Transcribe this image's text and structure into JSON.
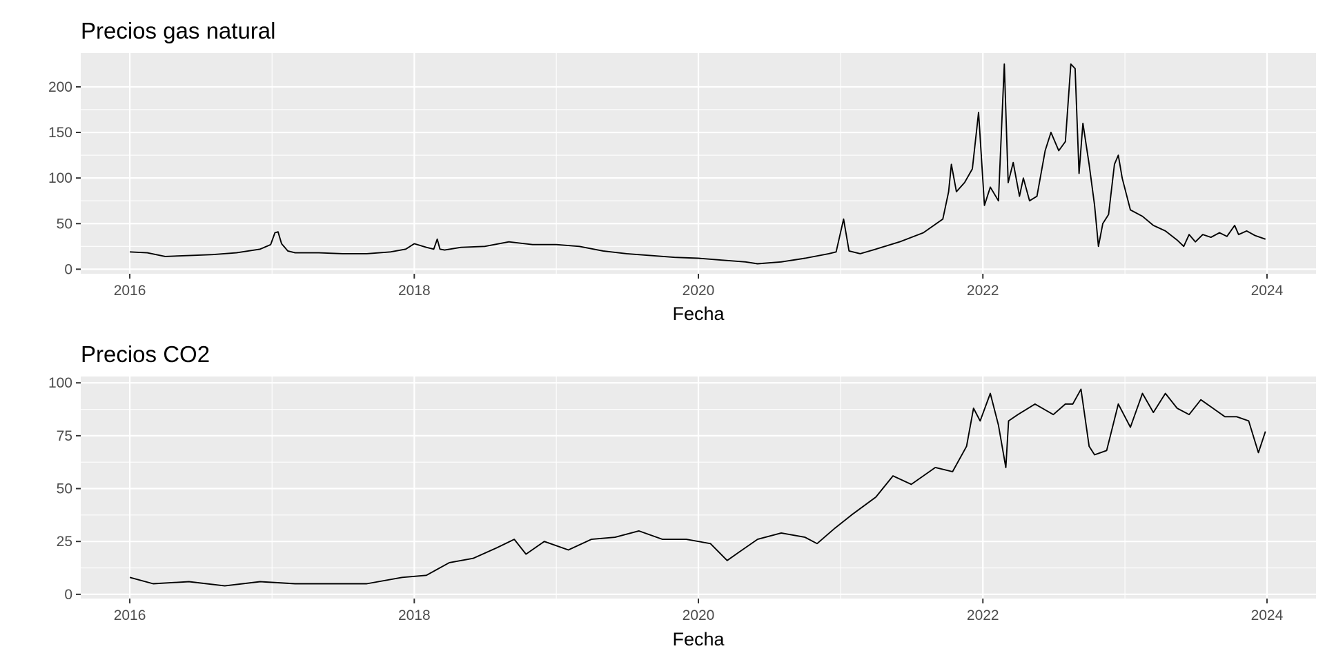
{
  "chart_data": [
    {
      "type": "line",
      "title": "Precios gas natural",
      "xlabel": "Fecha",
      "ylabel": "",
      "x_type": "date",
      "xlim": [
        "2015-08-28",
        "2024-05-06"
      ],
      "ylim": [
        -5,
        237
      ],
      "x_ticks": [
        "2016-01-01",
        "2018-01-01",
        "2020-01-01",
        "2022-01-01",
        "2024-01-01"
      ],
      "x_tick_labels": [
        "2016",
        "2018",
        "2020",
        "2022",
        "2024"
      ],
      "y_ticks": [
        0,
        50,
        100,
        150,
        200
      ],
      "y_tick_labels": [
        "0",
        "50",
        "100",
        "150",
        "200"
      ],
      "grid": true,
      "series": [
        {
          "color": "#000000",
          "x": [
            "2016-01-01",
            "2016-02-15",
            "2016-04-01",
            "2016-06-01",
            "2016-08-01",
            "2016-10-01",
            "2016-12-01",
            "2016-12-28",
            "2017-01-08",
            "2017-01-16",
            "2017-01-25",
            "2017-02-10",
            "2017-03-01",
            "2017-05-01",
            "2017-07-01",
            "2017-09-01",
            "2017-11-01",
            "2017-12-10",
            "2018-01-01",
            "2018-02-01",
            "2018-02-20",
            "2018-03-01",
            "2018-03-08",
            "2018-03-20",
            "2018-05-01",
            "2018-07-01",
            "2018-09-01",
            "2018-11-01",
            "2019-01-01",
            "2019-03-01",
            "2019-05-01",
            "2019-07-01",
            "2019-09-01",
            "2019-11-01",
            "2020-01-01",
            "2020-03-01",
            "2020-05-01",
            "2020-06-01",
            "2020-08-01",
            "2020-10-01",
            "2020-12-01",
            "2020-12-20",
            "2021-01-08",
            "2021-01-22",
            "2021-02-20",
            "2021-04-01",
            "2021-06-01",
            "2021-08-01",
            "2021-09-20",
            "2021-10-05",
            "2021-10-12",
            "2021-10-25",
            "2021-11-15",
            "2021-12-05",
            "2021-12-21",
            "2022-01-05",
            "2022-01-20",
            "2022-02-10",
            "2022-02-25",
            "2022-03-07",
            "2022-03-20",
            "2022-04-05",
            "2022-04-15",
            "2022-05-01",
            "2022-05-20",
            "2022-06-10",
            "2022-06-25",
            "2022-07-15",
            "2022-08-01",
            "2022-08-15",
            "2022-08-26",
            "2022-09-05",
            "2022-09-15",
            "2022-10-01",
            "2022-10-15",
            "2022-10-25",
            "2022-11-05",
            "2022-11-20",
            "2022-12-05",
            "2022-12-15",
            "2022-12-25",
            "2023-01-15",
            "2023-02-15",
            "2023-03-15",
            "2023-04-15",
            "2023-05-15",
            "2023-06-01",
            "2023-06-15",
            "2023-07-01",
            "2023-07-20",
            "2023-08-10",
            "2023-09-01",
            "2023-09-20",
            "2023-10-10",
            "2023-10-20",
            "2023-11-10",
            "2023-12-01",
            "2023-12-28"
          ],
          "y": [
            19,
            18,
            14,
            15,
            16,
            18,
            22,
            27,
            40,
            41,
            28,
            20,
            18,
            18,
            17,
            17,
            19,
            22,
            28,
            24,
            22,
            33,
            22,
            21,
            24,
            25,
            30,
            27,
            27,
            25,
            20,
            17,
            15,
            13,
            12,
            10,
            8,
            6,
            8,
            12,
            17,
            19,
            55,
            20,
            17,
            22,
            30,
            40,
            55,
            85,
            115,
            85,
            95,
            110,
            172,
            70,
            90,
            75,
            225,
            95,
            117,
            80,
            100,
            75,
            80,
            130,
            150,
            130,
            140,
            225,
            220,
            105,
            160,
            115,
            70,
            25,
            50,
            60,
            115,
            125,
            100,
            65,
            58,
            48,
            42,
            32,
            25,
            38,
            30,
            38,
            35,
            40,
            36,
            48,
            38,
            42,
            37,
            33
          ]
        }
      ]
    },
    {
      "type": "line",
      "title": "Precios CO2",
      "xlabel": "Fecha",
      "ylabel": "",
      "x_type": "date",
      "xlim": [
        "2015-08-28",
        "2024-05-06"
      ],
      "ylim": [
        -2,
        103
      ],
      "x_ticks": [
        "2016-01-01",
        "2018-01-01",
        "2020-01-01",
        "2022-01-01",
        "2024-01-01"
      ],
      "x_tick_labels": [
        "2016",
        "2018",
        "2020",
        "2022",
        "2024"
      ],
      "y_ticks": [
        0,
        25,
        50,
        75,
        100
      ],
      "y_tick_labels": [
        "0",
        "25",
        "50",
        "75",
        "100"
      ],
      "grid": true,
      "series": [
        {
          "color": "#000000",
          "x": [
            "2016-01-01",
            "2016-03-01",
            "2016-06-01",
            "2016-09-01",
            "2016-12-01",
            "2017-03-01",
            "2017-06-01",
            "2017-09-01",
            "2017-12-01",
            "2018-02-01",
            "2018-04-01",
            "2018-06-01",
            "2018-08-01",
            "2018-09-15",
            "2018-10-15",
            "2018-12-01",
            "2019-02-01",
            "2019-04-01",
            "2019-06-01",
            "2019-08-01",
            "2019-10-01",
            "2019-12-01",
            "2020-02-01",
            "2020-03-15",
            "2020-04-15",
            "2020-06-01",
            "2020-08-01",
            "2020-10-01",
            "2020-11-01",
            "2020-12-15",
            "2021-02-01",
            "2021-04-01",
            "2021-05-15",
            "2021-07-01",
            "2021-09-01",
            "2021-10-15",
            "2021-11-20",
            "2021-12-08",
            "2021-12-25",
            "2022-01-20",
            "2022-02-10",
            "2022-03-01",
            "2022-03-08",
            "2022-04-01",
            "2022-05-15",
            "2022-07-01",
            "2022-08-01",
            "2022-08-20",
            "2022-09-10",
            "2022-10-01",
            "2022-10-15",
            "2022-11-15",
            "2022-12-15",
            "2023-01-15",
            "2023-02-15",
            "2023-03-15",
            "2023-04-15",
            "2023-05-15",
            "2023-06-15",
            "2023-07-15",
            "2023-08-15",
            "2023-09-15",
            "2023-10-15",
            "2023-11-15",
            "2023-12-10",
            "2023-12-28"
          ],
          "y": [
            8,
            5,
            6,
            4,
            6,
            5,
            5,
            5,
            8,
            9,
            15,
            17,
            22,
            26,
            19,
            25,
            21,
            26,
            27,
            30,
            26,
            26,
            24,
            16,
            20,
            26,
            29,
            27,
            24,
            31,
            38,
            46,
            56,
            52,
            60,
            58,
            70,
            88,
            82,
            95,
            80,
            60,
            82,
            85,
            90,
            85,
            90,
            90,
            97,
            70,
            66,
            68,
            90,
            79,
            95,
            86,
            95,
            88,
            85,
            92,
            88,
            84,
            84,
            82,
            67,
            77
          ]
        }
      ]
    }
  ]
}
